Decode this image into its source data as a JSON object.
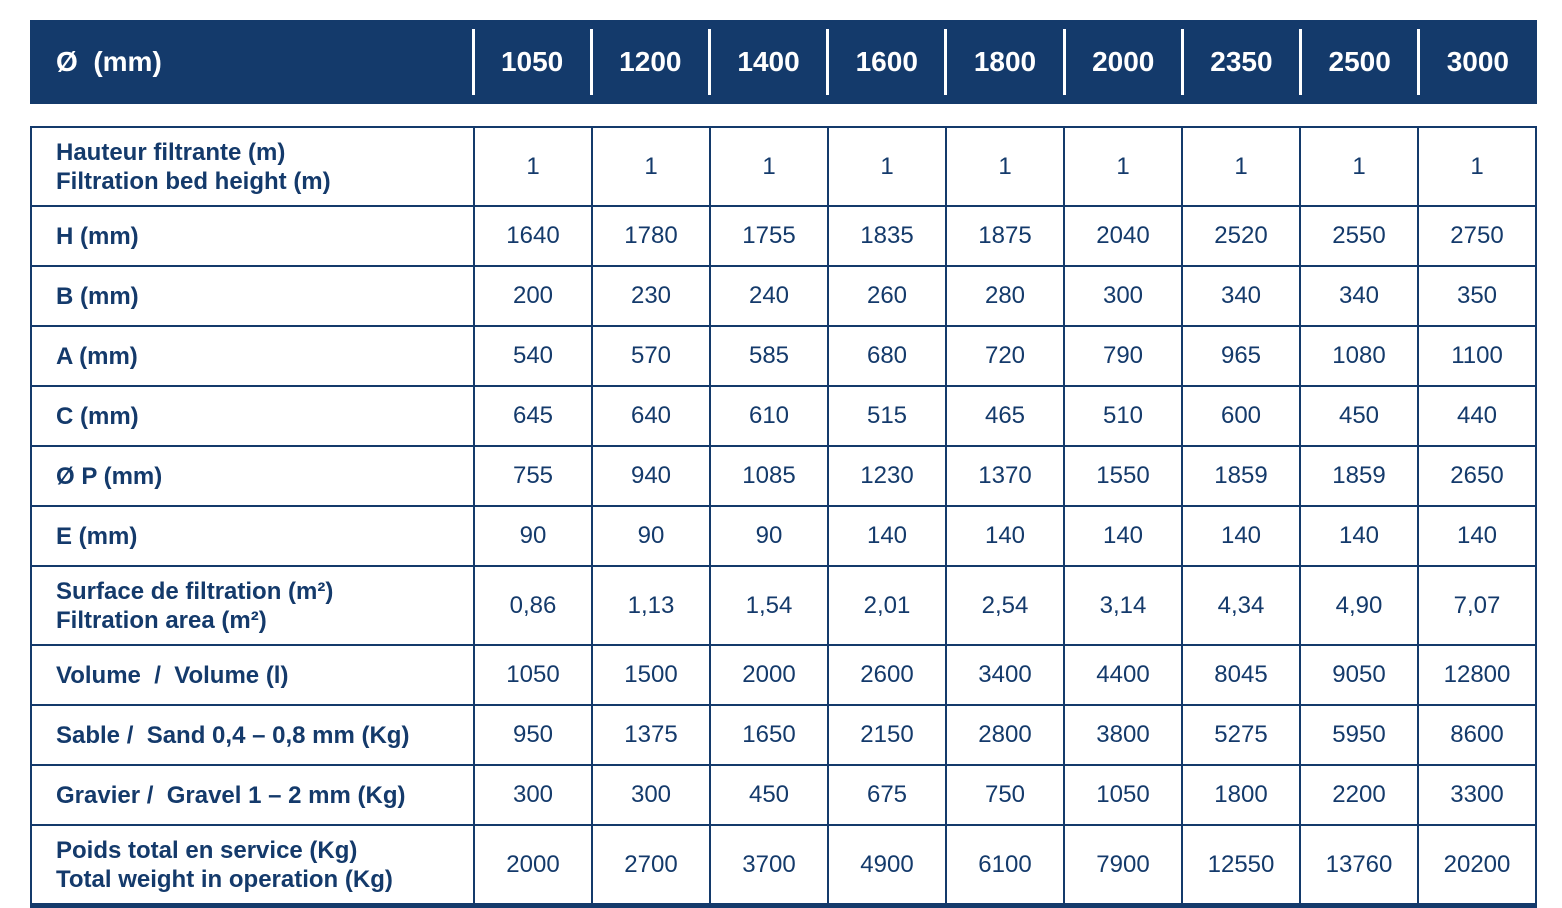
{
  "colors": {
    "navy": "#143a6b",
    "white": "#ffffff"
  },
  "table": {
    "header": {
      "label": "Ø  (mm)",
      "columns": [
        "1050",
        "1200",
        "1400",
        "1600",
        "1800",
        "2000",
        "2350",
        "2500",
        "3000"
      ]
    },
    "rows": [
      {
        "label_lines": [
          "Hauteur filtrante (m)",
          "Filtration bed height (m)"
        ],
        "values": [
          "1",
          "1",
          "1",
          "1",
          "1",
          "1",
          "1",
          "1",
          "1"
        ]
      },
      {
        "label_lines": [
          "H (mm)"
        ],
        "values": [
          "1640",
          "1780",
          "1755",
          "1835",
          "1875",
          "2040",
          "2520",
          "2550",
          "2750"
        ]
      },
      {
        "label_lines": [
          "B (mm)"
        ],
        "values": [
          "200",
          "230",
          "240",
          "260",
          "280",
          "300",
          "340",
          "340",
          "350"
        ]
      },
      {
        "label_lines": [
          "A (mm)"
        ],
        "values": [
          "540",
          "570",
          "585",
          "680",
          "720",
          "790",
          "965",
          "1080",
          "1100"
        ]
      },
      {
        "label_lines": [
          "C (mm)"
        ],
        "values": [
          "645",
          "640",
          "610",
          "515",
          "465",
          "510",
          "600",
          "450",
          "440"
        ]
      },
      {
        "label_lines": [
          "Ø P (mm)"
        ],
        "values": [
          "755",
          "940",
          "1085",
          "1230",
          "1370",
          "1550",
          "1859",
          "1859",
          "2650"
        ]
      },
      {
        "label_lines": [
          "E (mm)"
        ],
        "values": [
          "90",
          "90",
          "90",
          "140",
          "140",
          "140",
          "140",
          "140",
          "140"
        ]
      },
      {
        "label_lines": [
          "Surface de filtration (m²)",
          "Filtration area (m²)"
        ],
        "values": [
          "0,86",
          "1,13",
          "1,54",
          "2,01",
          "2,54",
          "3,14",
          "4,34",
          "4,90",
          "7,07"
        ]
      },
      {
        "label_lines": [
          "Volume  /  Volume (l)"
        ],
        "values": [
          "1050",
          "1500",
          "2000",
          "2600",
          "3400",
          "4400",
          "8045",
          "9050",
          "12800"
        ]
      },
      {
        "label_lines": [
          "Sable /  Sand 0,4 – 0,8 mm (Kg)"
        ],
        "values": [
          "950",
          "1375",
          "1650",
          "2150",
          "2800",
          "3800",
          "5275",
          "5950",
          "8600"
        ]
      },
      {
        "label_lines": [
          "Gravier /  Gravel 1 – 2 mm (Kg)"
        ],
        "values": [
          "300",
          "300",
          "450",
          "675",
          "750",
          "1050",
          "1800",
          "2200",
          "3300"
        ]
      },
      {
        "label_lines": [
          "Poids total en service (Kg)",
          "Total weight in operation (Kg)"
        ],
        "values": [
          "2000",
          "2700",
          "3700",
          "4900",
          "6100",
          "7900",
          "12550",
          "13760",
          "20200"
        ]
      }
    ]
  }
}
